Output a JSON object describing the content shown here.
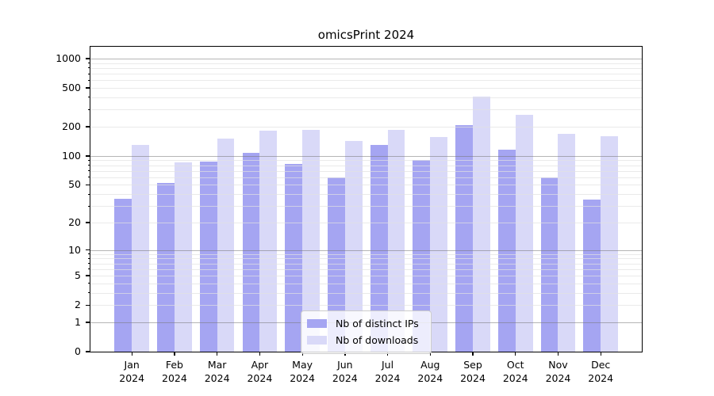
{
  "title": "omicsPrint 2024",
  "chart_data": {
    "type": "bar",
    "title": "omicsPrint 2024",
    "categories": [
      "Jan 2024",
      "Feb 2024",
      "Mar 2024",
      "Apr 2024",
      "May 2024",
      "Jun 2024",
      "Jul 2024",
      "Aug 2024",
      "Sep 2024",
      "Oct 2024",
      "Nov 2024",
      "Dec 2024"
    ],
    "series": [
      {
        "name": "Nb of distinct IPs",
        "color": "#a5a5f2",
        "values": [
          36,
          52,
          88,
          108,
          83,
          60,
          130,
          91,
          207,
          115,
          60,
          35
        ]
      },
      {
        "name": "Nb of downloads",
        "color": "#d9d9f8",
        "values": [
          130,
          86,
          151,
          182,
          186,
          142,
          184,
          157,
          410,
          265,
          169,
          161
        ]
      }
    ],
    "yscale": "log1p",
    "yticks": [
      0,
      1,
      2,
      5,
      10,
      20,
      50,
      100,
      200,
      500,
      1000
    ],
    "ytick_labels": [
      "0",
      "1",
      "2",
      "5",
      "10",
      "20",
      "50",
      "100",
      "200",
      "500",
      "1000"
    ],
    "ylim": [
      0,
      1300
    ],
    "grid": "both",
    "legend_position": "lower center"
  }
}
